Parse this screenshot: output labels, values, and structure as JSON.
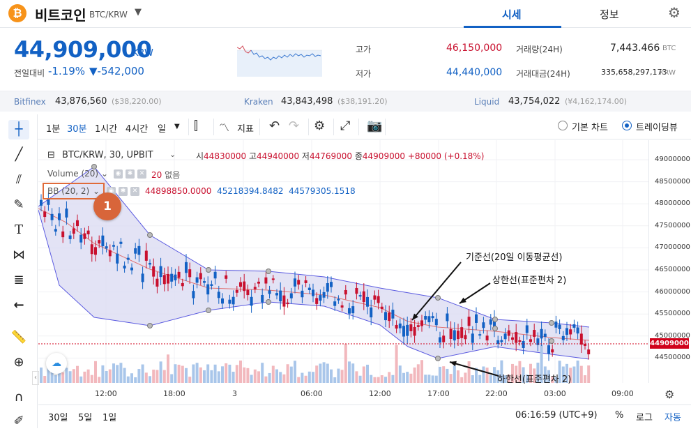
{
  "header": {
    "coin_logo": "₿",
    "coin_name": "비트코인",
    "pair": "BTC/KRW",
    "tabs": [
      "시세",
      "정보"
    ]
  },
  "ticker": {
    "price": "44,909,000",
    "unit": "KRW",
    "change_label": "전일대비",
    "change_rate": "-1.19%",
    "change_amount": "▼-542,000",
    "high_label": "고가",
    "high": "46,150,000",
    "low_label": "저가",
    "low": "44,440,000",
    "volume_label": "거래량(24H)",
    "volume": "7,443.466",
    "volume_unit": "BTC",
    "amount_label": "거래대금(24H)",
    "amount": "335,658,297,173",
    "amount_unit": "KRW"
  },
  "exchanges": [
    {
      "name": "Bitfinex",
      "price": "43,876,560",
      "sub": "($38,220.00)"
    },
    {
      "name": "Kraken",
      "price": "43,843,498",
      "sub": "($38,191.20)"
    },
    {
      "name": "Liquid",
      "price": "43,754,022",
      "sub": "(¥4,162,174.00)"
    }
  ],
  "toolbar": {
    "timeframes": [
      "1분",
      "30분",
      "1시간",
      "4시간",
      "일"
    ],
    "indicator_label": "지표",
    "view_basic": "기본 차트",
    "view_tradingview": "트레이딩뷰"
  },
  "chart": {
    "symbol": "BTC/KRW, 30, UPBIT",
    "ohlc": {
      "open_label": "시",
      "open": "44830000",
      "high_label": "고",
      "high": "44940000",
      "low_label": "저",
      "low": "44769000",
      "close_label": "종",
      "close": "44909000",
      "change": "+80000 (+0.18%)"
    },
    "volume_legend": "Volume (20)",
    "volume_value": "20",
    "volume_none": "없음",
    "bb_legend": "BB (20, 2)",
    "bb_values": [
      "44898850.0000",
      "45218394.8482",
      "44579305.1518"
    ],
    "badge": "1",
    "annotations": {
      "middle": "기준선(20일 이동평균선)",
      "upper": "상한선(표준편차 2)",
      "lower": "하한선(표준편차 2)"
    },
    "y_ticks": [
      "49000000",
      "48500000",
      "48000000",
      "47500000",
      "47000000",
      "46500000",
      "46000000",
      "45500000",
      "45000000",
      "44500000"
    ],
    "current_price_label": "44909000",
    "x_ticks": [
      "12:00",
      "18:00",
      "3",
      "06:00",
      "12:00",
      "17:00",
      "22:00",
      "03:00",
      "09:00"
    ]
  },
  "bottom": {
    "ranges": [
      "30일",
      "5일",
      "1일"
    ],
    "time": "06:16:59 (UTC+9)",
    "percent": "%",
    "log": "로그",
    "auto": "자동"
  },
  "colors": {
    "up": "#c8102e",
    "down": "#1261c4",
    "bb_fill": "#dcdcf2",
    "bb_band": "#5a5ae0",
    "bb_mid": "#e07070"
  }
}
